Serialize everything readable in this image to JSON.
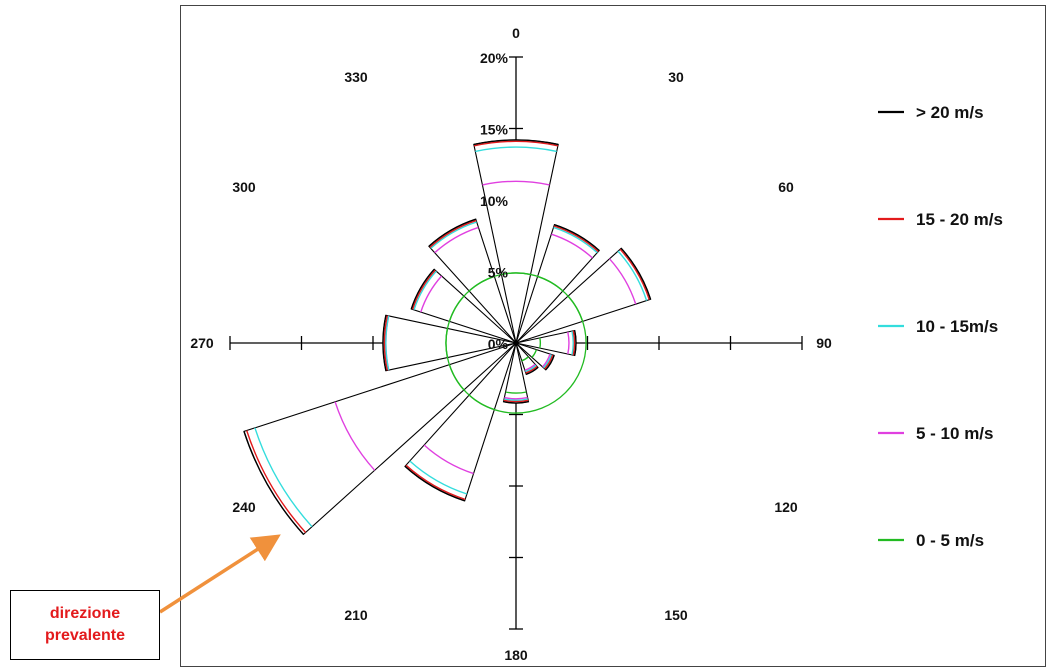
{
  "chart_data": {
    "type": "wind-rose",
    "direction_labels": [
      "0",
      "30",
      "60",
      "90",
      "120",
      "150",
      "180",
      "210",
      "240",
      "270",
      "300",
      "330"
    ],
    "radial_labels": [
      "0%",
      "5%",
      "10%",
      "15%",
      "20%"
    ],
    "radial_max": 20,
    "legend": [
      {
        "label": "> 20 m/s",
        "color": "#000000"
      },
      {
        "label": "15 - 20 m/s",
        "color": "#e31a1c"
      },
      {
        "label": "10 - 15m/s",
        "color": "#33dddd"
      },
      {
        "label": "5 - 10 m/s",
        "color": "#e040e0"
      },
      {
        "label": "0 - 5 m/s",
        "color": "#22bb22"
      }
    ],
    "sectors": [
      {
        "direction": 0,
        "cumulative": [
          4.9,
          11.3,
          13.7,
          14.1,
          14.2
        ]
      },
      {
        "direction": 30,
        "cumulative": [
          4.9,
          8.0,
          8.5,
          8.6,
          8.7
        ]
      },
      {
        "direction": 60,
        "cumulative": [
          4.9,
          8.8,
          9.6,
          9.8,
          9.9
        ]
      },
      {
        "direction": 90,
        "cumulative": [
          1.7,
          3.7,
          4.0,
          4.1,
          4.2
        ]
      },
      {
        "direction": 120,
        "cumulative": [
          1.5,
          2.5,
          2.6,
          2.7,
          2.8
        ]
      },
      {
        "direction": 150,
        "cumulative": [
          1.3,
          2.0,
          2.1,
          2.2,
          2.3
        ]
      },
      {
        "direction": 180,
        "cumulative": [
          3.5,
          3.9,
          4.0,
          4.1,
          4.2
        ]
      },
      {
        "direction": 210,
        "cumulative": [
          4.9,
          9.6,
          11.1,
          11.5,
          11.6
        ]
      },
      {
        "direction": 240,
        "cumulative": [
          4.9,
          13.3,
          19.2,
          19.8,
          20.0
        ]
      },
      {
        "direction": 270,
        "cumulative": [
          4.9,
          9.1,
          9.1,
          9.2,
          9.3
        ]
      },
      {
        "direction": 300,
        "cumulative": [
          4.9,
          7.0,
          7.5,
          7.6,
          7.7
        ]
      },
      {
        "direction": 330,
        "cumulative": [
          4.9,
          8.5,
          8.9,
          9.0,
          9.1
        ]
      }
    ]
  },
  "callout": {
    "line1": "direzione",
    "line2": "prevalente",
    "text_color": "#e31a1c",
    "arrow_color": "#f0913c"
  }
}
